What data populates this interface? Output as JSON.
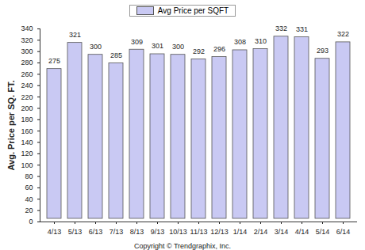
{
  "chart_data": {
    "type": "bar",
    "caption": "Copyright © Trendgraphix, Inc.",
    "y_label": "Avg. Price per SQ. FT.",
    "categories": [
      "4/13",
      "5/13",
      "6/13",
      "7/13",
      "8/13",
      "9/13",
      "10/13",
      "11/13",
      "12/13",
      "1/14",
      "2/14",
      "3/14",
      "4/14",
      "5/14",
      "6/14"
    ],
    "series": [
      {
        "name": "Avg Price per SQFT",
        "color": "#c9c9f3",
        "values": [
          275,
          321,
          300,
          285,
          309,
          301,
          300,
          292,
          296,
          308,
          310,
          332,
          331,
          293,
          322
        ]
      }
    ],
    "ylim": [
      0,
      340
    ],
    "yticks": [
      0,
      20,
      40,
      60,
      80,
      100,
      120,
      140,
      160,
      180,
      200,
      220,
      240,
      260,
      280,
      300,
      320,
      340
    ],
    "grid": false,
    "legend": "top",
    "data_labels": true
  }
}
